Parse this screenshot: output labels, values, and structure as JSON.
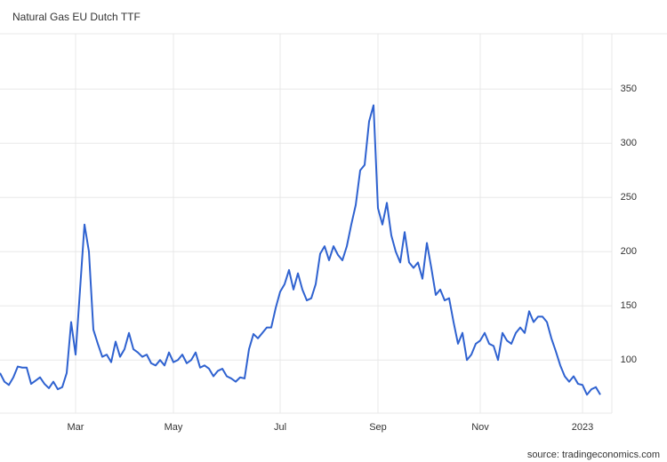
{
  "chart_data": {
    "type": "line",
    "title": "Natural Gas EU Dutch TTF",
    "source": "source: tradingeconomics.com",
    "categories": [
      null,
      null,
      null,
      null,
      null,
      null,
      null,
      null,
      null,
      null,
      null,
      null,
      null,
      null,
      null,
      null,
      null,
      "Mar",
      null,
      null,
      null,
      null,
      null,
      null,
      null,
      null,
      null,
      null,
      null,
      null,
      null,
      null,
      null,
      null,
      null,
      null,
      null,
      null,
      null,
      "May",
      null,
      null,
      null,
      null,
      null,
      null,
      null,
      null,
      null,
      null,
      null,
      null,
      null,
      null,
      null,
      null,
      null,
      null,
      null,
      null,
      null,
      null,
      null,
      "Jul",
      null,
      null,
      null,
      null,
      null,
      null,
      null,
      null,
      null,
      null,
      null,
      null,
      null,
      null,
      null,
      null,
      null,
      null,
      null,
      null,
      null,
      "Sep",
      null,
      null,
      null,
      null,
      null,
      null,
      null,
      null,
      null,
      null,
      null,
      null,
      null,
      null,
      null,
      null,
      null,
      null,
      null,
      null,
      null,
      null,
      "Nov",
      null,
      null,
      null,
      null,
      null,
      null,
      null,
      null,
      null,
      null,
      null,
      null,
      null,
      null,
      null,
      null,
      null,
      null,
      null,
      null,
      null,
      null,
      "2023",
      null,
      null,
      null,
      null
    ],
    "series": [
      {
        "name": "Natural Gas EU Dutch TTF",
        "color": "#2f62d0",
        "values": [
          88,
          80,
          77,
          84,
          94,
          93,
          93,
          78,
          81,
          84,
          78,
          74,
          80,
          73,
          75,
          88,
          135,
          105,
          165,
          225,
          200,
          128,
          115,
          103,
          105,
          98,
          117,
          103,
          110,
          125,
          110,
          107,
          103,
          105,
          97,
          95,
          100,
          95,
          107,
          98,
          100,
          105,
          97,
          100,
          107,
          93,
          95,
          92,
          85,
          90,
          92,
          85,
          83,
          80,
          84,
          83,
          110,
          124,
          120,
          125,
          130,
          130,
          148,
          163,
          170,
          183,
          165,
          180,
          165,
          155,
          157,
          170,
          198,
          205,
          192,
          205,
          197,
          192,
          205,
          225,
          243,
          275,
          280,
          320,
          335,
          240,
          225,
          245,
          215,
          200,
          190,
          218,
          190,
          185,
          190,
          175,
          208,
          185,
          160,
          165,
          155,
          157,
          135,
          115,
          125,
          100,
          105,
          115,
          118,
          125,
          115,
          113,
          100,
          125,
          118,
          115,
          125,
          130,
          125,
          145,
          135,
          140,
          140,
          135,
          120,
          108,
          95,
          85,
          80,
          85,
          78,
          77,
          68,
          73,
          75,
          68
        ]
      }
    ],
    "ylim": [
      51,
      401
    ],
    "yticks": [
      100,
      150,
      200,
      250,
      300,
      350
    ],
    "grid": true
  }
}
